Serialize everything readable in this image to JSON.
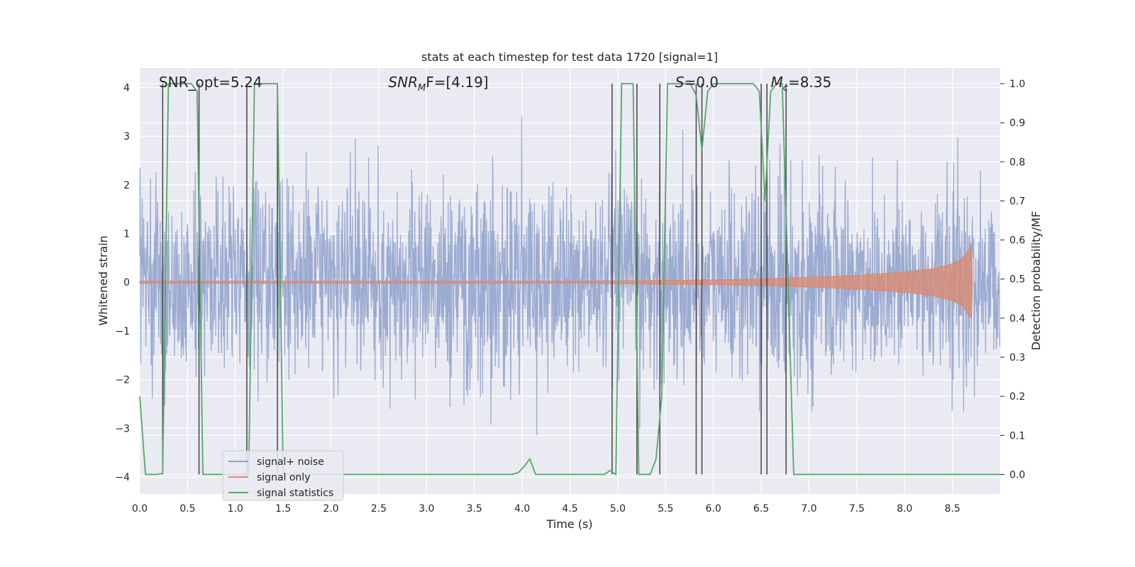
{
  "chart_data": {
    "type": "line",
    "title": "stats at each timestep for test data 1720 [signal=1]",
    "xlabel": "Time (s)",
    "ylabel": "Whitened strain",
    "ylabel_right": "Detection probability/MF",
    "xlim": [
      0.0,
      9.0
    ],
    "ylim": [
      -4.35,
      4.4
    ],
    "ylim_right": [
      -0.05,
      1.04
    ],
    "x_ticks": [
      0.0,
      0.5,
      1.0,
      1.5,
      2.0,
      2.5,
      3.0,
      3.5,
      4.0,
      4.5,
      5.0,
      5.5,
      6.0,
      6.5,
      7.0,
      7.5,
      8.0,
      8.5
    ],
    "x_tick_labels": [
      "0.0",
      "0.5",
      "1.0",
      "1.5",
      "2.0",
      "2.5",
      "3.0",
      "3.5",
      "4.0",
      "4.5",
      "5.0",
      "5.5",
      "6.0",
      "6.5",
      "7.0",
      "7.5",
      "8.0",
      "8.5"
    ],
    "y_ticks": [
      -4,
      -3,
      -2,
      -1,
      0,
      1,
      2,
      3,
      4
    ],
    "y_tick_labels": [
      "−4",
      "−3",
      "−2",
      "−1",
      "0",
      "1",
      "2",
      "3",
      "4"
    ],
    "y_ticks_right": [
      0.0,
      0.1,
      0.2,
      0.3,
      0.4,
      0.5,
      0.6,
      0.7,
      0.8,
      0.9,
      1.0
    ],
    "y_tick_labels_right": [
      "0.0",
      "0.1",
      "0.2",
      "0.3",
      "0.4",
      "0.5",
      "0.6",
      "0.7",
      "0.8",
      "0.9",
      "1.0"
    ],
    "annotations": [
      {
        "label": "SNR_opt=5.24",
        "x": 0.2
      },
      {
        "label": "SNR",
        "sub": "M",
        "suffix": "F=[4.19]",
        "x": 2.6
      },
      {
        "label": "S",
        "suffix": "=0.0",
        "x": 5.6
      },
      {
        "label": "M",
        "sub": "c",
        "suffix": "=8.35",
        "x": 6.6
      }
    ],
    "legend": {
      "position": "lower-left",
      "entries": [
        {
          "name": "signal+ noise",
          "color": "#8da0cb"
        },
        {
          "name": "signal only",
          "color": "#e08a6b"
        },
        {
          "name": "signal statistics",
          "color": "#55a868"
        }
      ]
    },
    "series": [
      {
        "name": "signal+ noise",
        "color": "#8da0cb",
        "noise_std": 1.0,
        "peak_max": 4.0,
        "peak_min": -3.8
      },
      {
        "name": "signal only",
        "color": "#d98b73",
        "envelope": {
          "x": [
            0.0,
            4.5,
            5.0,
            5.5,
            6.0,
            6.5,
            7.0,
            7.5,
            8.0,
            8.3,
            8.5,
            8.6,
            8.65,
            8.7,
            8.71
          ],
          "amplitude": [
            0.02,
            0.02,
            0.03,
            0.04,
            0.05,
            0.07,
            0.1,
            0.14,
            0.21,
            0.28,
            0.38,
            0.48,
            0.62,
            0.75,
            0.0
          ]
        }
      },
      {
        "name": "signal statistics",
        "color": "#55a868",
        "x": [
          0.0,
          0.06,
          0.12,
          0.18,
          0.24,
          0.3,
          0.36,
          0.42,
          0.48,
          0.54,
          0.6,
          0.66,
          0.72,
          0.78,
          0.84,
          0.9,
          0.96,
          1.02,
          1.08,
          1.14,
          1.2,
          1.26,
          1.32,
          1.38,
          1.44,
          1.5,
          1.56,
          3.9,
          3.96,
          4.02,
          4.08,
          4.14,
          4.2,
          4.8,
          4.86,
          4.92,
          4.98,
          5.04,
          5.1,
          5.16,
          5.22,
          5.28,
          5.34,
          5.4,
          5.46,
          5.52,
          5.58,
          5.64,
          5.7,
          5.76,
          5.82,
          5.88,
          5.94,
          6.0,
          6.06,
          6.12,
          6.18,
          6.24,
          6.3,
          6.36,
          6.42,
          6.48,
          6.54,
          6.6,
          6.66,
          6.72,
          6.78,
          6.84,
          6.9,
          6.96,
          9.0
        ],
        "y": [
          0.2,
          0.0,
          0.0,
          0.0,
          0.003,
          1.0,
          1.0,
          1.0,
          1.0,
          1.0,
          0.98,
          0.0,
          0.0,
          0.0,
          0.0,
          0.0,
          0.0,
          0.0,
          0.0,
          0.0,
          1.0,
          1.0,
          1.0,
          1.0,
          1.0,
          0.0,
          0.0,
          0.0,
          0.005,
          0.02,
          0.04,
          0.0,
          0.0,
          0.0,
          0.0,
          0.01,
          0.0,
          1.0,
          1.0,
          1.0,
          0.0,
          0.0,
          0.0,
          0.04,
          0.2,
          1.0,
          1.0,
          1.0,
          1.0,
          1.0,
          0.97,
          0.83,
          0.98,
          1.0,
          1.0,
          1.0,
          1.0,
          1.0,
          1.0,
          1.0,
          1.0,
          0.98,
          0.7,
          0.98,
          1.0,
          1.0,
          0.5,
          0.0,
          0.0,
          0.0,
          0.0
        ]
      }
    ],
    "vlines": {
      "color": "#444444",
      "x": [
        0.24,
        0.62,
        1.12,
        1.44,
        4.94,
        5.2,
        5.44,
        5.82,
        5.88,
        6.5,
        6.56,
        6.76
      ],
      "y_range": [
        0.0,
        1.0
      ]
    },
    "grid": true,
    "background": "#eaeaf2"
  }
}
